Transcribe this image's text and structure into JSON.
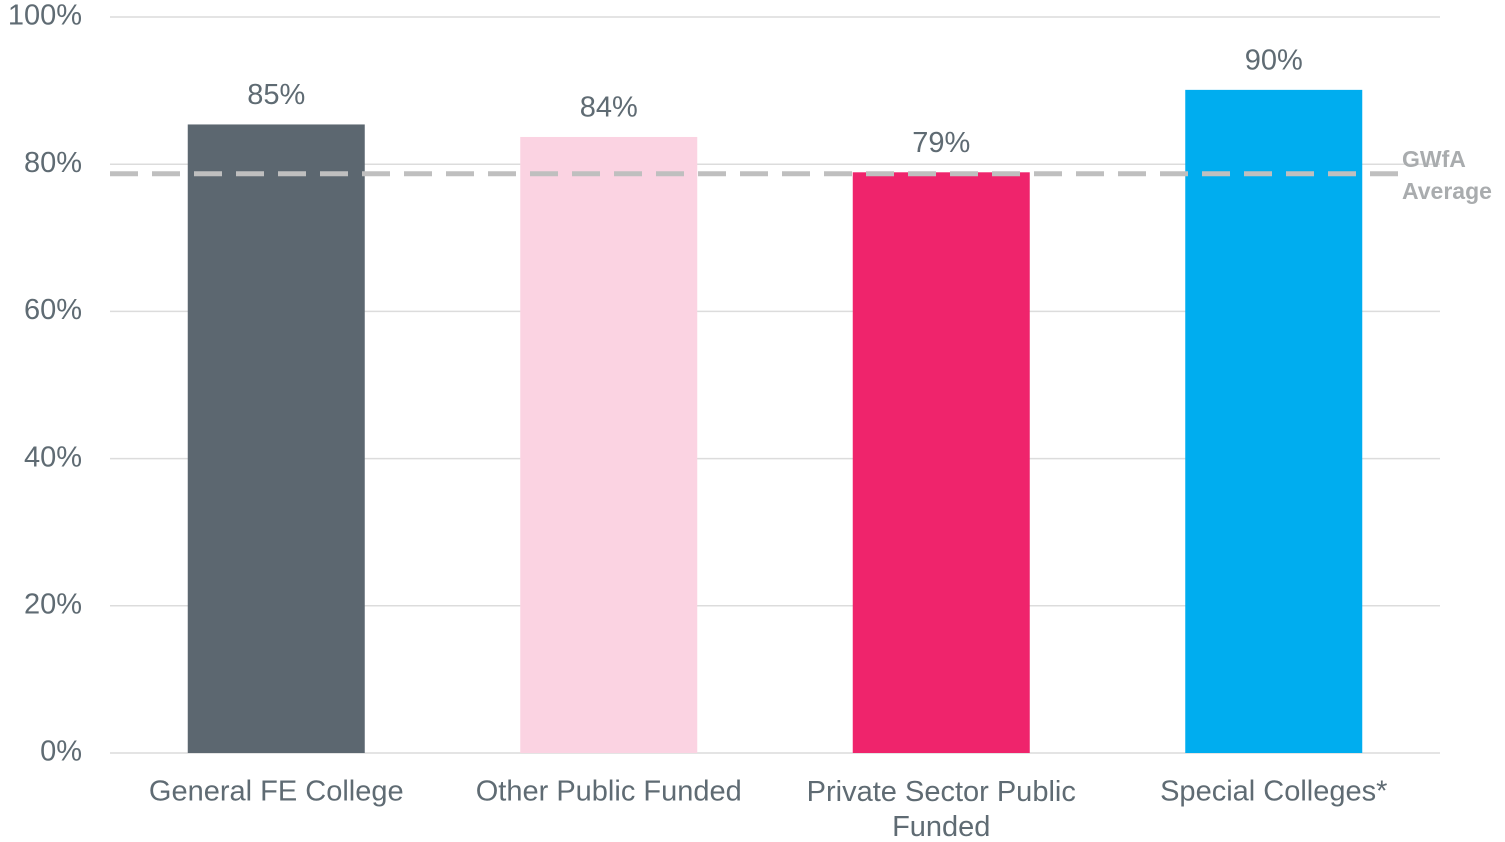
{
  "chart_data": {
    "type": "bar",
    "categories": [
      "General FE College",
      "Other Public Funded",
      "Private Sector Public Funded",
      "Special Colleges*"
    ],
    "values": [
      85.4,
      83.7,
      78.9,
      90.1
    ],
    "value_labels": [
      "85%",
      "84%",
      "79%",
      "90%"
    ],
    "colors": [
      "#5c6770",
      "#fbd3e2",
      "#ef246c",
      "#00adef"
    ],
    "ylim": [
      0,
      100
    ],
    "yticks": [
      {
        "value": 0,
        "label": "0%"
      },
      {
        "value": 20,
        "label": "20%"
      },
      {
        "value": 40,
        "label": "40%"
      },
      {
        "value": 60,
        "label": "60%"
      },
      {
        "value": 80,
        "label": "80%"
      },
      {
        "value": 100,
        "label": "100%"
      }
    ],
    "grid": true,
    "reference_line": {
      "value": 78.7,
      "label": [
        "GWfA",
        "Average"
      ],
      "color": "#bfbfbf"
    }
  }
}
